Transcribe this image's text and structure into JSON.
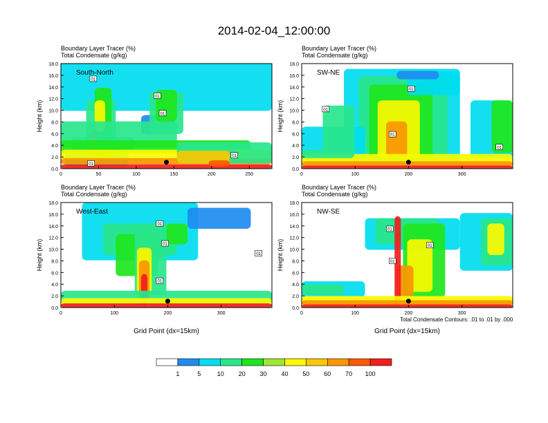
{
  "page": {
    "title": "2014-02-04_12:00:00",
    "footnote": "Total Condensate Contours: .01 to .01 by .000"
  },
  "colors": {
    "scale": [
      "#ffffff",
      "#1e8cf0",
      "#00dcf0",
      "#28e68c",
      "#1ee61e",
      "#a0e632",
      "#fafa00",
      "#fac800",
      "#fa9600",
      "#fa5a00",
      "#f01e1e"
    ]
  },
  "chart_data": [
    {
      "type": "heatmap",
      "name": "South-North",
      "title_line1": "Boundary Layer Tracer   (%)",
      "title_line2": "Total Condensate   (g/kg)",
      "ylabel": "Height (km)",
      "xlabel": "",
      "xlim": [
        0,
        280
      ],
      "ylim": [
        0,
        18
      ],
      "xticks": [
        0,
        50,
        100,
        150,
        200,
        250
      ],
      "yticks": [
        "0.0",
        "2.0",
        "4.0",
        "6.0",
        "8.0",
        "10.0",
        "12.0",
        "14.0",
        "16.0",
        "18.0"
      ],
      "contour_labels": [
        {
          "text": "01",
          "x": 43,
          "y": 15.4
        },
        {
          "text": "01",
          "x": 128,
          "y": 12.5
        },
        {
          "text": "01",
          "x": 135,
          "y": 9.5
        },
        {
          "text": "01",
          "x": 230,
          "y": 2.3
        },
        {
          "text": "01",
          "x": 40,
          "y": 0.9
        }
      ],
      "marker": {
        "x": 140,
        "y": 1.1
      }
    },
    {
      "type": "heatmap",
      "name": "SW-NE",
      "title_line1": "Boundary Layer Tracer   (%)",
      "title_line2": "Total Condensate   (g/kg)",
      "ylabel": "Height (km)",
      "xlabel": "",
      "xlim": [
        0,
        395
      ],
      "ylim": [
        0,
        18
      ],
      "xticks": [
        0,
        100,
        200,
        300
      ],
      "yticks": [
        "0.0",
        "2.0",
        "4.0",
        "6.0",
        "8.0",
        "10.0",
        "12.0",
        "14.0",
        "16.0",
        "18.0"
      ],
      "contour_labels": [
        {
          "text": "01",
          "x": 205,
          "y": 13.7
        },
        {
          "text": "01",
          "x": 45,
          "y": 10.2
        },
        {
          "text": "01",
          "x": 170,
          "y": 5.9
        },
        {
          "text": "01",
          "x": 370,
          "y": 3.7
        }
      ],
      "marker": {
        "x": 200,
        "y": 1.1
      }
    },
    {
      "type": "heatmap",
      "name": "West-East",
      "title_line1": "Boundary Layer Tracer   (%)",
      "title_line2": "Total Condensate   (g/kg)",
      "ylabel": "Height (km)",
      "xlabel": "Grid Point (dx=15km)",
      "xlim": [
        0,
        395
      ],
      "ylim": [
        0,
        18
      ],
      "xticks": [
        0,
        100,
        200,
        300
      ],
      "yticks": [
        "0.0",
        "2.0",
        "4.0",
        "6.0",
        "8.0",
        "10.0",
        "12.0",
        "14.0",
        "16.0",
        "18.0"
      ],
      "contour_labels": [
        {
          "text": "01",
          "x": 185,
          "y": 14.4
        },
        {
          "text": "01",
          "x": 195,
          "y": 11.0
        },
        {
          "text": "01",
          "x": 185,
          "y": 4.6
        },
        {
          "text": "01",
          "x": 370,
          "y": 9.3
        }
      ],
      "marker": {
        "x": 200,
        "y": 1.1
      }
    },
    {
      "type": "heatmap",
      "name": "NW-SE",
      "title_line1": "Boundary Layer Tracer   (%)",
      "title_line2": "Total Condensate   (g/kg)",
      "ylabel": "Height (km)",
      "xlabel": "Grid Point (dx=15km)",
      "xlim": [
        0,
        395
      ],
      "ylim": [
        0,
        18
      ],
      "xticks": [
        0,
        100,
        200,
        300
      ],
      "yticks": [
        "0.0",
        "2.0",
        "4.0",
        "6.0",
        "8.0",
        "10.0",
        "12.0",
        "14.0",
        "16.0",
        "18.0"
      ],
      "contour_labels": [
        {
          "text": "01",
          "x": 165,
          "y": 13.5
        },
        {
          "text": "01",
          "x": 170,
          "y": 8.0
        },
        {
          "text": "01",
          "x": 240,
          "y": 10.7
        }
      ],
      "marker": {
        "x": 200,
        "y": 1.1
      }
    }
  ],
  "colorbar": {
    "labels": [
      "1",
      "5",
      "10",
      "20",
      "30",
      "40",
      "50",
      "60",
      "70",
      "100"
    ]
  }
}
